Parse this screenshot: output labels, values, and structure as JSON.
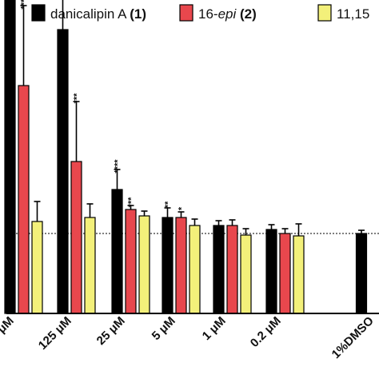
{
  "chart_data": {
    "type": "bar",
    "title": "",
    "xlabel": "",
    "ylabel": "",
    "categories": [
      "μM",
      "125 μM",
      "25 μM",
      "5 μM",
      "1 μM",
      "0.2 μM",
      "1%DMSO"
    ],
    "baseline": 1.0,
    "ylim": [
      0,
      5.4
    ],
    "legend_position": "top",
    "series": [
      {
        "name_parts": [
          {
            "text": "danicalipin A ",
            "style": "normal"
          },
          {
            "text": "(1)",
            "style": "bold"
          }
        ],
        "color": "#000000",
        "values": [
          4.55,
          3.55,
          1.55,
          1.2,
          1.1,
          1.05,
          1.0
        ],
        "errors": [
          0.75,
          0.65,
          0.25,
          0.12,
          0.06,
          0.06,
          0.04
        ],
        "significance": [
          "****",
          "****",
          "****",
          "**",
          "",
          "",
          ""
        ]
      },
      {
        "name_parts": [
          {
            "text": "16-",
            "style": "normal"
          },
          {
            "text": "epi",
            "style": "italic"
          },
          {
            "text": " ",
            "style": "normal"
          },
          {
            "text": "(2)",
            "style": "bold"
          }
        ],
        "color": "#e8474d",
        "values": [
          2.85,
          1.9,
          1.3,
          1.2,
          1.1,
          1.0,
          null
        ],
        "errors": [
          1.0,
          0.75,
          0.05,
          0.07,
          0.07,
          0.06,
          null
        ],
        "significance": [
          "****",
          "***",
          "***",
          "*",
          "",
          "",
          ""
        ]
      },
      {
        "name_parts": [
          {
            "text": "11,15",
            "style": "normal"
          }
        ],
        "color": "#f3f07a",
        "values": [
          1.15,
          1.2,
          1.22,
          1.1,
          0.98,
          0.97,
          null
        ],
        "errors": [
          0.25,
          0.17,
          0.06,
          0.08,
          0.08,
          0.15,
          null
        ],
        "significance": [
          "",
          "",
          "",
          "",
          "",
          "",
          ""
        ]
      }
    ]
  }
}
